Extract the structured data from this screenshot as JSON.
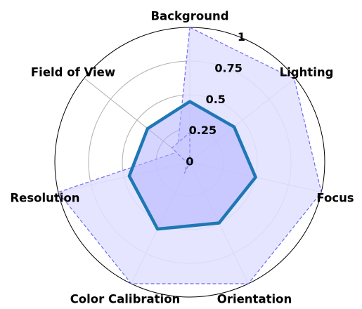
{
  "chart_data": {
    "type": "radar",
    "axes": [
      "Background",
      "Lighting",
      "Focus",
      "Orientation",
      "Color Calibration",
      "Resolution",
      "Field of View"
    ],
    "rlim": [
      0,
      1
    ],
    "r_ticks": [
      "0",
      "0.25",
      "0.5",
      "0.75",
      "1"
    ],
    "r_tick_values": [
      0,
      0.25,
      0.5,
      0.75,
      1
    ],
    "grid": true,
    "series": [
      {
        "values": [
          0.45,
          0.42,
          0.5,
          0.5,
          0.55,
          0.46,
          0.4
        ],
        "style": "solid",
        "line_color": "#1f77b4",
        "fill_color": "#b3b3ff"
      },
      {
        "values": [
          1.0,
          0.99,
          1.0,
          1.0,
          1.0,
          1.0,
          0.12
        ],
        "style": "dashed",
        "line_color": "#6b6bf0",
        "fill_color": "#e0e0ff"
      },
      {
        "values": [
          0.22,
          0.0,
          0.0,
          0.0,
          0.09,
          0.02,
          0.17
        ],
        "style": "dashed",
        "line_color": "#5050d0",
        "fill_color": "#e8e8ff"
      }
    ]
  }
}
